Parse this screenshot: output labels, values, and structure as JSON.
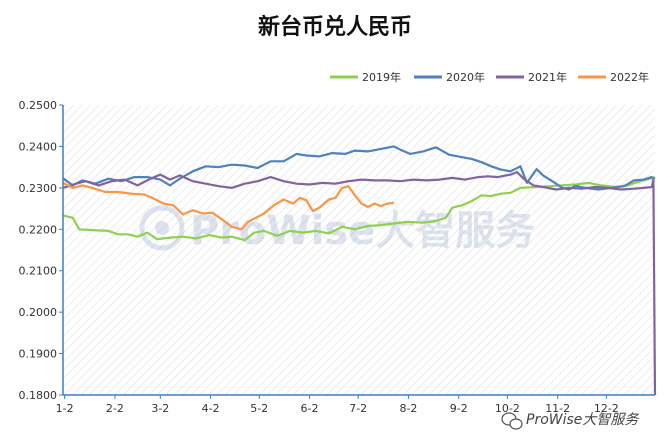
{
  "chart_data": {
    "type": "line",
    "title": "新台币兑人民币",
    "xlabel": "",
    "ylabel": "",
    "ylim": [
      0.18,
      0.25
    ],
    "y_ticks": [
      "0.1800",
      "0.1900",
      "0.2000",
      "0.2100",
      "0.2200",
      "0.2300",
      "0.2400",
      "0.2500"
    ],
    "x_ticks": [
      "1-2",
      "2-2",
      "3-2",
      "4-2",
      "5-2",
      "6-2",
      "7-2",
      "8-2",
      "9-2",
      "10-2",
      "11-2",
      "12-2"
    ],
    "x_range_days": [
      0,
      365
    ],
    "grid": "hatched background, no gridlines",
    "legend_position": "top-right",
    "series": [
      {
        "name": "2019年",
        "color": "#8fd14f",
        "points": [
          [
            0,
            0.2233
          ],
          [
            6,
            0.2228
          ],
          [
            10,
            0.22
          ],
          [
            18,
            0.2198
          ],
          [
            28,
            0.2196
          ],
          [
            34,
            0.2188
          ],
          [
            40,
            0.2188
          ],
          [
            46,
            0.2182
          ],
          [
            52,
            0.2192
          ],
          [
            58,
            0.2176
          ],
          [
            66,
            0.218
          ],
          [
            74,
            0.2182
          ],
          [
            82,
            0.2178
          ],
          [
            90,
            0.2186
          ],
          [
            98,
            0.218
          ],
          [
            104,
            0.2182
          ],
          [
            112,
            0.2174
          ],
          [
            118,
            0.2192
          ],
          [
            124,
            0.2196
          ],
          [
            132,
            0.2184
          ],
          [
            140,
            0.2196
          ],
          [
            148,
            0.2192
          ],
          [
            156,
            0.2196
          ],
          [
            164,
            0.219
          ],
          [
            172,
            0.2206
          ],
          [
            180,
            0.22
          ],
          [
            188,
            0.2208
          ],
          [
            196,
            0.221
          ],
          [
            204,
            0.2214
          ],
          [
            212,
            0.2218
          ],
          [
            222,
            0.2216
          ],
          [
            230,
            0.222
          ],
          [
            236,
            0.2228
          ],
          [
            240,
            0.2252
          ],
          [
            246,
            0.2258
          ],
          [
            252,
            0.2268
          ],
          [
            258,
            0.2282
          ],
          [
            264,
            0.228
          ],
          [
            270,
            0.2286
          ],
          [
            276,
            0.2288
          ],
          [
            282,
            0.23
          ],
          [
            292,
            0.2302
          ],
          [
            300,
            0.2304
          ],
          [
            308,
            0.2306
          ],
          [
            316,
            0.2308
          ],
          [
            324,
            0.2312
          ],
          [
            332,
            0.2306
          ],
          [
            340,
            0.2302
          ],
          [
            348,
            0.2306
          ],
          [
            356,
            0.2316
          ],
          [
            362,
            0.2322
          ],
          [
            365,
            0.2325
          ]
        ]
      },
      {
        "name": "2020年",
        "color": "#4f81bd",
        "points": [
          [
            0,
            0.2323
          ],
          [
            6,
            0.2306
          ],
          [
            12,
            0.2318
          ],
          [
            20,
            0.231
          ],
          [
            28,
            0.2322
          ],
          [
            36,
            0.2316
          ],
          [
            44,
            0.2326
          ],
          [
            52,
            0.2326
          ],
          [
            60,
            0.232
          ],
          [
            66,
            0.2306
          ],
          [
            72,
            0.2322
          ],
          [
            80,
            0.234
          ],
          [
            88,
            0.2352
          ],
          [
            96,
            0.235
          ],
          [
            104,
            0.2356
          ],
          [
            112,
            0.2354
          ],
          [
            120,
            0.2348
          ],
          [
            128,
            0.2364
          ],
          [
            136,
            0.2364
          ],
          [
            144,
            0.2382
          ],
          [
            150,
            0.2378
          ],
          [
            158,
            0.2376
          ],
          [
            166,
            0.2384
          ],
          [
            174,
            0.2382
          ],
          [
            180,
            0.239
          ],
          [
            188,
            0.2388
          ],
          [
            196,
            0.2394
          ],
          [
            204,
            0.24
          ],
          [
            208,
            0.2392
          ],
          [
            214,
            0.2382
          ],
          [
            222,
            0.2388
          ],
          [
            230,
            0.2398
          ],
          [
            238,
            0.238
          ],
          [
            246,
            0.2374
          ],
          [
            252,
            0.237
          ],
          [
            258,
            0.2362
          ],
          [
            264,
            0.2352
          ],
          [
            270,
            0.2344
          ],
          [
            276,
            0.234
          ],
          [
            282,
            0.2352
          ],
          [
            286,
            0.2312
          ],
          [
            292,
            0.2345
          ],
          [
            296,
            0.233
          ],
          [
            300,
            0.232
          ],
          [
            304,
            0.231
          ],
          [
            308,
            0.23
          ],
          [
            312,
            0.2296
          ],
          [
            316,
            0.2305
          ],
          [
            322,
            0.23
          ],
          [
            330,
            0.2296
          ],
          [
            338,
            0.23
          ],
          [
            346,
            0.2304
          ],
          [
            352,
            0.2318
          ],
          [
            358,
            0.232
          ],
          [
            363,
            0.2326
          ],
          [
            365,
            0.2322
          ]
        ]
      },
      {
        "name": "2021年",
        "color": "#8064a2",
        "points": [
          [
            0,
            0.23
          ],
          [
            8,
            0.231
          ],
          [
            14,
            0.2316
          ],
          [
            22,
            0.2306
          ],
          [
            30,
            0.2316
          ],
          [
            38,
            0.232
          ],
          [
            46,
            0.2306
          ],
          [
            54,
            0.2322
          ],
          [
            60,
            0.2332
          ],
          [
            66,
            0.232
          ],
          [
            72,
            0.233
          ],
          [
            80,
            0.2316
          ],
          [
            88,
            0.231
          ],
          [
            96,
            0.2304
          ],
          [
            104,
            0.23
          ],
          [
            112,
            0.231
          ],
          [
            120,
            0.2316
          ],
          [
            128,
            0.2326
          ],
          [
            136,
            0.2316
          ],
          [
            144,
            0.231
          ],
          [
            152,
            0.2308
          ],
          [
            160,
            0.2312
          ],
          [
            168,
            0.231
          ],
          [
            176,
            0.2316
          ],
          [
            184,
            0.232
          ],
          [
            192,
            0.2318
          ],
          [
            200,
            0.2318
          ],
          [
            208,
            0.2316
          ],
          [
            216,
            0.232
          ],
          [
            224,
            0.2318
          ],
          [
            232,
            0.232
          ],
          [
            240,
            0.2324
          ],
          [
            248,
            0.232
          ],
          [
            256,
            0.2326
          ],
          [
            262,
            0.2328
          ],
          [
            268,
            0.2326
          ],
          [
            276,
            0.2332
          ],
          [
            280,
            0.2338
          ],
          [
            284,
            0.2322
          ],
          [
            290,
            0.2306
          ],
          [
            296,
            0.2302
          ],
          [
            304,
            0.2296
          ],
          [
            312,
            0.23
          ],
          [
            320,
            0.2298
          ],
          [
            328,
            0.2302
          ],
          [
            336,
            0.23
          ],
          [
            344,
            0.2296
          ],
          [
            352,
            0.2298
          ],
          [
            358,
            0.23
          ],
          [
            363,
            0.2302
          ],
          [
            364,
            0.232
          ],
          [
            365,
            0.18
          ]
        ]
      },
      {
        "name": "2022年",
        "color": "#f79646",
        "points": [
          [
            0,
            0.2312
          ],
          [
            6,
            0.23
          ],
          [
            12,
            0.2306
          ],
          [
            18,
            0.23
          ],
          [
            26,
            0.229
          ],
          [
            34,
            0.229
          ],
          [
            42,
            0.2286
          ],
          [
            50,
            0.2284
          ],
          [
            56,
            0.2274
          ],
          [
            62,
            0.2262
          ],
          [
            68,
            0.2258
          ],
          [
            74,
            0.2236
          ],
          [
            80,
            0.2246
          ],
          [
            86,
            0.2238
          ],
          [
            92,
            0.224
          ],
          [
            98,
            0.2224
          ],
          [
            104,
            0.2206
          ],
          [
            110,
            0.22
          ],
          [
            114,
            0.2218
          ],
          [
            118,
            0.2226
          ],
          [
            124,
            0.2238
          ],
          [
            130,
            0.2258
          ],
          [
            136,
            0.2272
          ],
          [
            142,
            0.2262
          ],
          [
            146,
            0.2276
          ],
          [
            150,
            0.227
          ],
          [
            154,
            0.2244
          ],
          [
            158,
            0.2252
          ],
          [
            164,
            0.2272
          ],
          [
            168,
            0.2276
          ],
          [
            172,
            0.23
          ],
          [
            176,
            0.2304
          ],
          [
            180,
            0.2282
          ],
          [
            184,
            0.2262
          ],
          [
            188,
            0.2254
          ],
          [
            192,
            0.2262
          ],
          [
            196,
            0.2256
          ],
          [
            200,
            0.2262
          ],
          [
            204,
            0.2264
          ]
        ]
      }
    ]
  },
  "watermark_text": "ProWise大智服务",
  "footer_watermark_text": "ProWise大智服务"
}
